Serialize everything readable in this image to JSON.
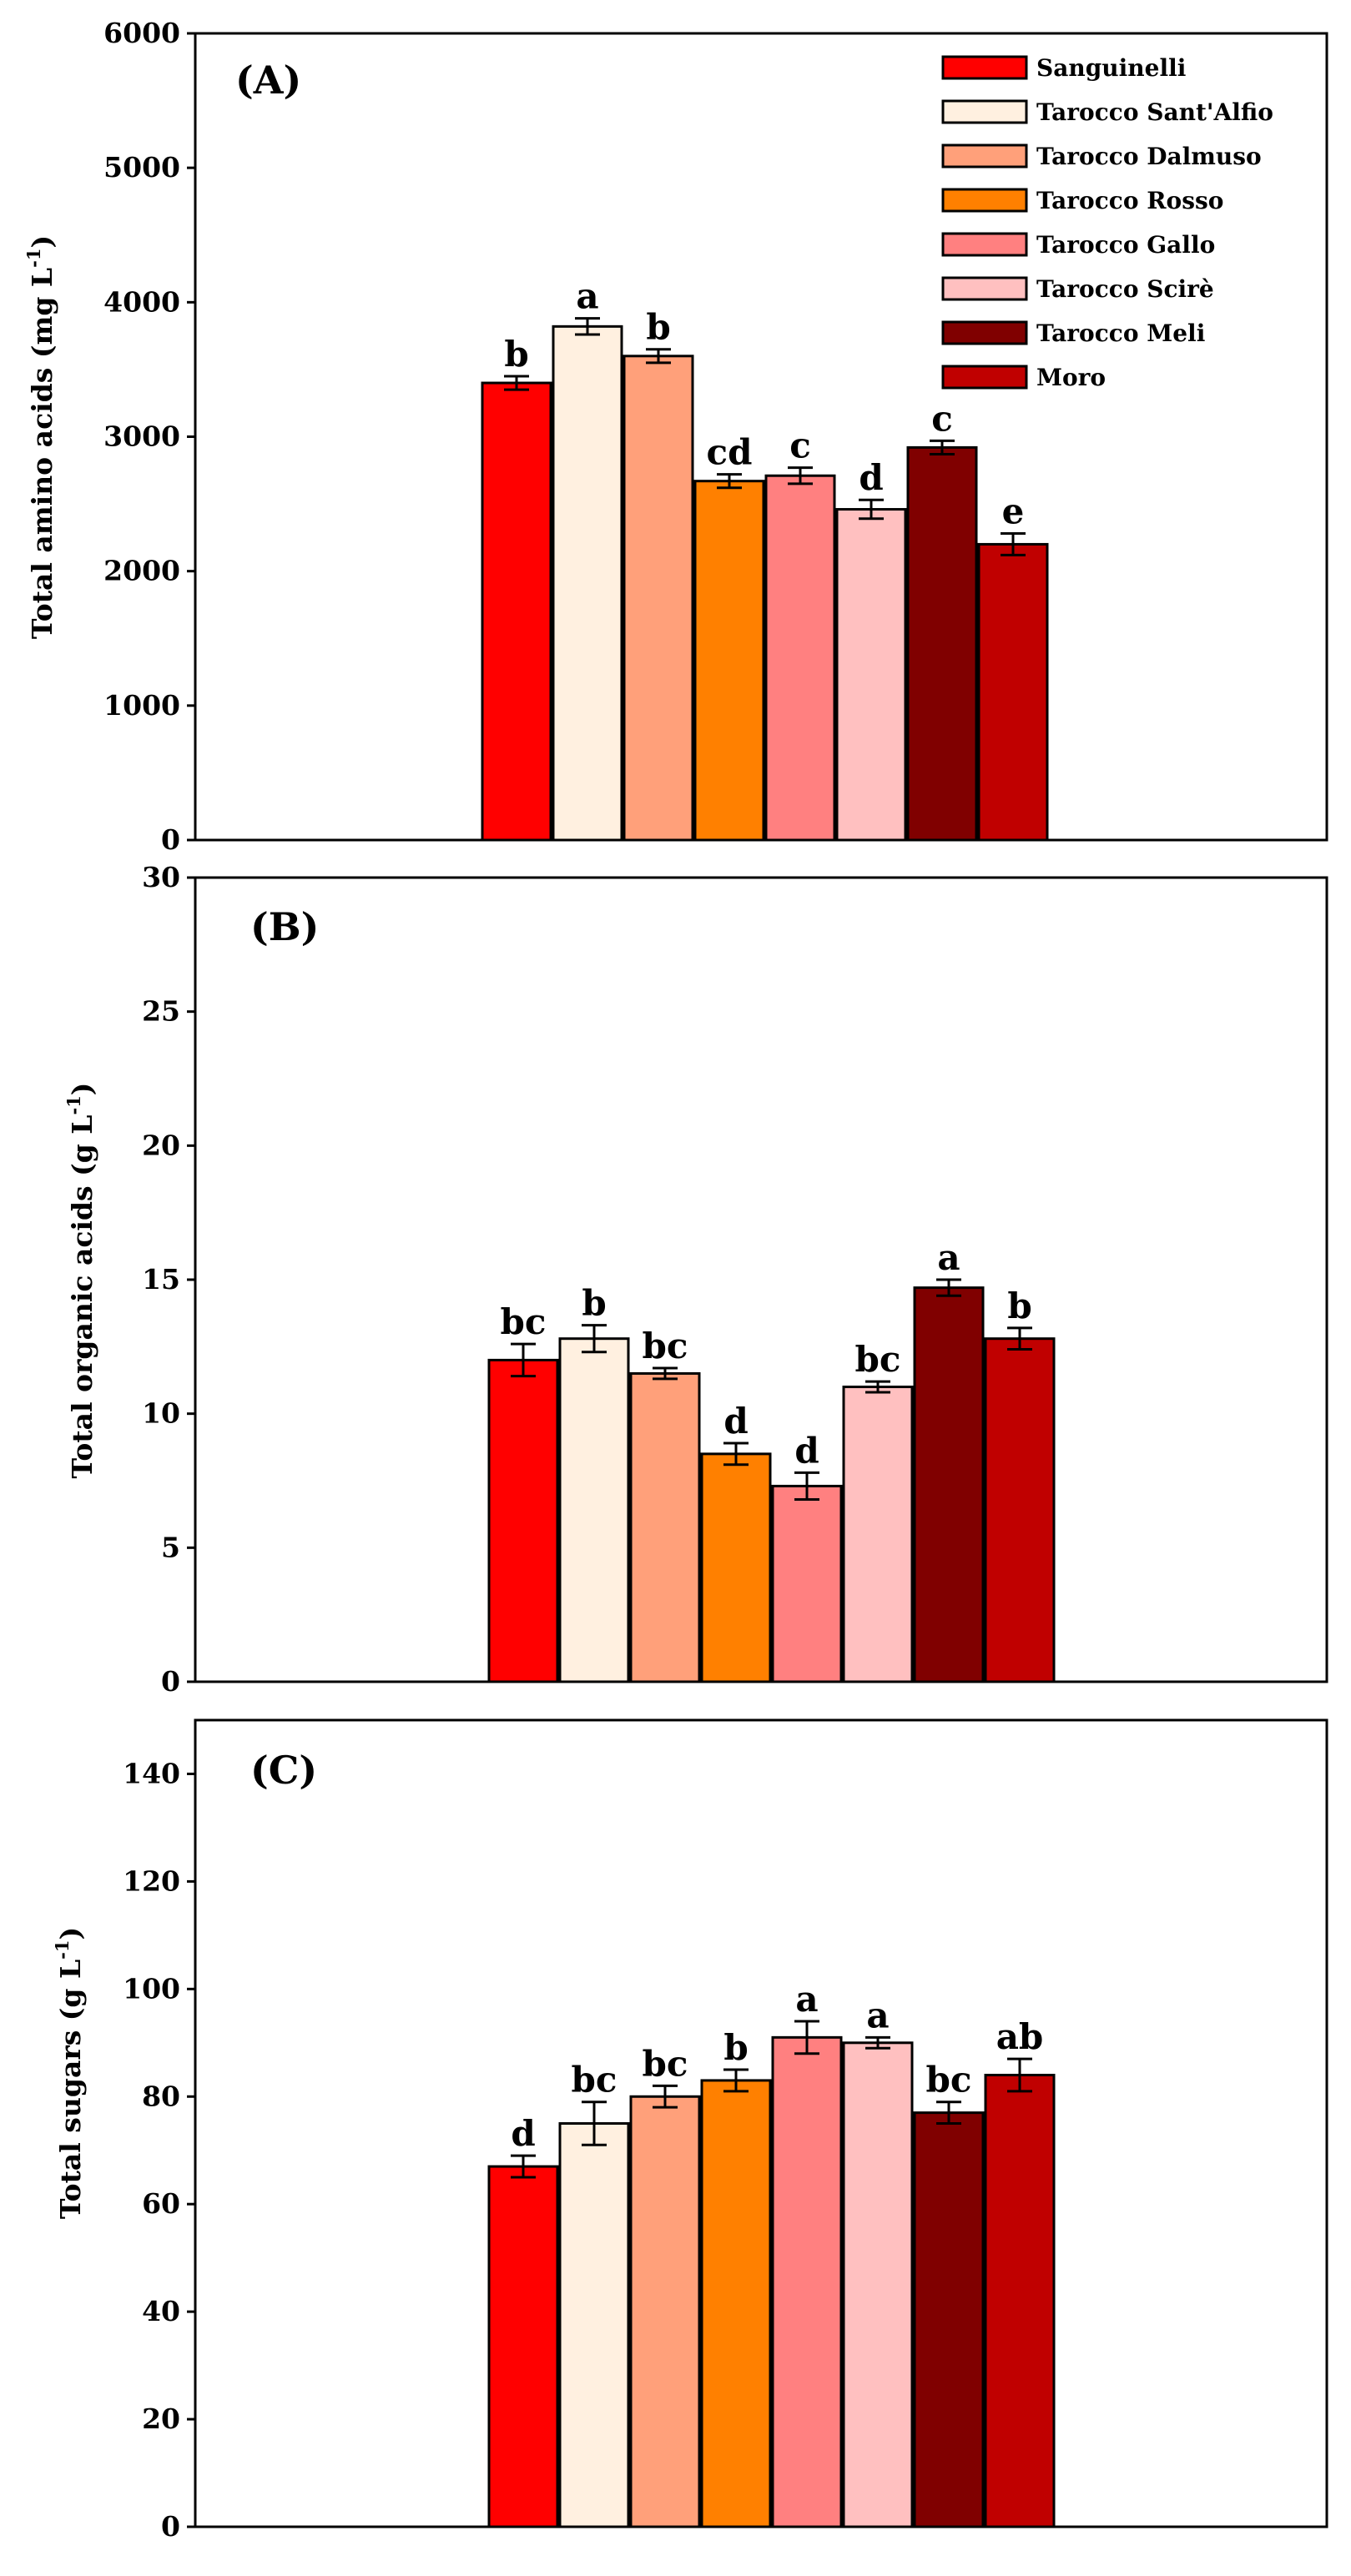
{
  "colors": {
    "Sanguinelli": "#ff0000",
    "Tarocco Sant'Alfio": "#fff0e0",
    "Tarocco Dalmuso": "#ffa07a",
    "Tarocco Rosso": "#ff8000",
    "Tarocco Gallo": "#ff8080",
    "Tarocco Scirè": "#ffc0c0",
    "Tarocco Meli": "#800000",
    "Moro": "#c00000"
  },
  "legend": [
    "Sanguinelli",
    "Tarocco Sant'Alfio",
    "Tarocco Dalmuso",
    "Tarocco Rosso",
    "Tarocco Gallo",
    "Tarocco Scirè",
    "Tarocco Meli",
    "Moro"
  ],
  "chart_data": [
    {
      "type": "bar",
      "panel_label": "(A)",
      "ylabel_main": "Total amino acids (mg L",
      "ylabel_sup": "-1",
      "ylabel_end": ")",
      "ylim": [
        0,
        6000
      ],
      "yticks": [
        0,
        1000,
        2000,
        3000,
        4000,
        5000,
        6000
      ],
      "categories": [
        "Sanguinelli",
        "Tarocco Sant'Alfio",
        "Tarocco Dalmuso",
        "Tarocco Rosso",
        "Tarocco Gallo",
        "Tarocco Scirè",
        "Tarocco Meli",
        "Moro"
      ],
      "values": [
        3400,
        3820,
        3600,
        2670,
        2710,
        2460,
        2920,
        2200
      ],
      "errors": [
        50,
        60,
        50,
        50,
        60,
        70,
        50,
        80
      ],
      "letters": [
        "b",
        "a",
        "b",
        "cd",
        "c",
        "d",
        "c",
        "e"
      ],
      "legend_position": "top-right"
    },
    {
      "type": "bar",
      "panel_label": "(B)",
      "ylabel_main": "Total organic acids  (g L",
      "ylabel_sup": "-1",
      "ylabel_end": ")",
      "ylim": [
        0,
        30
      ],
      "yticks": [
        0,
        5,
        10,
        15,
        20,
        25,
        30
      ],
      "categories": [
        "Sanguinelli",
        "Tarocco Sant'Alfio",
        "Tarocco Dalmuso",
        "Tarocco Rosso",
        "Tarocco Gallo",
        "Tarocco Scirè",
        "Tarocco Meli",
        "Moro"
      ],
      "values": [
        12.0,
        12.8,
        11.5,
        8.5,
        7.3,
        11.0,
        14.7,
        12.8
      ],
      "errors": [
        0.6,
        0.5,
        0.2,
        0.4,
        0.5,
        0.2,
        0.3,
        0.4
      ],
      "letters": [
        "bc",
        "b",
        "bc",
        "d",
        "d",
        "bc",
        "a",
        "b"
      ]
    },
    {
      "type": "bar",
      "panel_label": "(C)",
      "ylabel_main": "Total sugars  (g L",
      "ylabel_sup": "-1",
      "ylabel_end": ")",
      "ylim": [
        0,
        150
      ],
      "yticks": [
        0,
        20,
        40,
        60,
        80,
        100,
        120,
        140
      ],
      "categories": [
        "Sanguinelli",
        "Tarocco Sant'Alfio",
        "Tarocco Dalmuso",
        "Tarocco Rosso",
        "Tarocco Gallo",
        "Tarocco Scirè",
        "Tarocco Meli",
        "Moro"
      ],
      "values": [
        67,
        75,
        80,
        83,
        91,
        90,
        77,
        84
      ],
      "errors": [
        2,
        4,
        2,
        2,
        3,
        1,
        2,
        3
      ],
      "letters": [
        "d",
        "bc",
        "bc",
        "b",
        "a",
        "a",
        "bc",
        "ab"
      ]
    }
  ]
}
